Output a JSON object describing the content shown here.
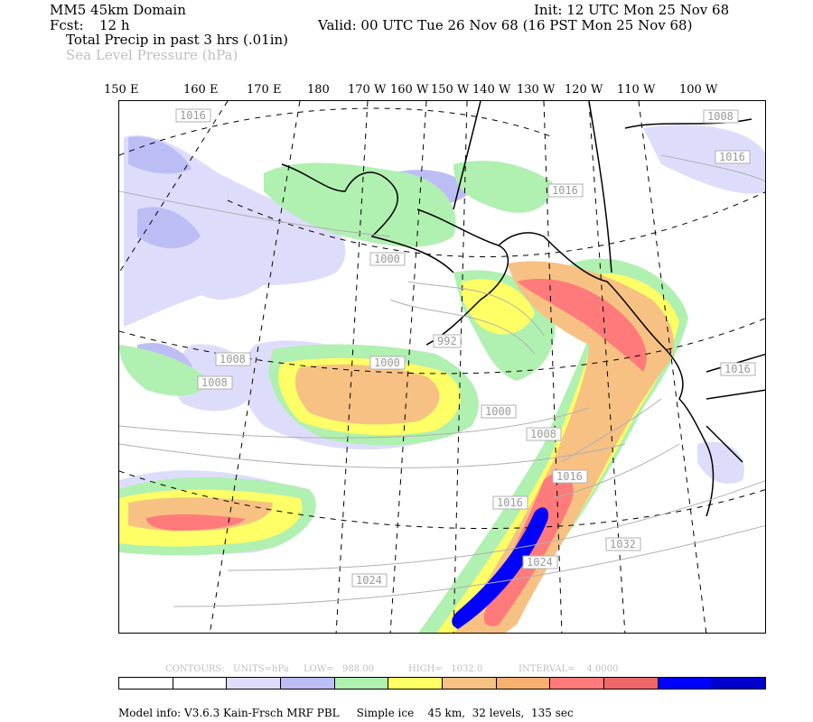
{
  "header": {
    "domain": "MM5 45km Domain",
    "fcst_label": "Fcst:",
    "fcst_value": "12 h",
    "init": "Init: 12 UTC Mon 25 Nov 68",
    "valid": "Valid: 00 UTC Tue 26 Nov 68 (16 PST Mon 25 Nov 68)",
    "field1": "Total Precip in past 3 hrs (.01in)",
    "field2": "Sea Level Pressure (hPa)"
  },
  "longitudes": [
    "150 E",
    "160 E",
    "170 E",
    "180",
    "170 W",
    "160 W",
    "150 W",
    "140 W",
    "130 W",
    "120 W",
    "110 W",
    "100 W"
  ],
  "isobar_labels": [
    "1016",
    "1008",
    "1016",
    "1016",
    "1000",
    "992",
    "1000",
    "1008",
    "1008",
    "1000",
    "1008",
    "1016",
    "1016",
    "1024",
    "1024",
    "1032",
    "1016"
  ],
  "contour_info": {
    "contours": "CONTOURS:",
    "units": "UNITS=hPa",
    "low": "LOW=   988.00",
    "high": "HIGH=   1032.0",
    "interval": "INTERVAL=    4.0000"
  },
  "legend_colors": [
    "#ffffff",
    "#ffffff",
    "#ddddfb",
    "#bdbdf6",
    "#b0f0b0",
    "#ffff66",
    "#f7c183",
    "#f7b070",
    "#ff7a7a",
    "#ee6666",
    "#0000ff",
    "#0000cc"
  ],
  "footer": "Model info: V3.6.3 Kain-Frsch MRF PBL     Simple ice    45 km,  32 levels,  135 sec"
}
